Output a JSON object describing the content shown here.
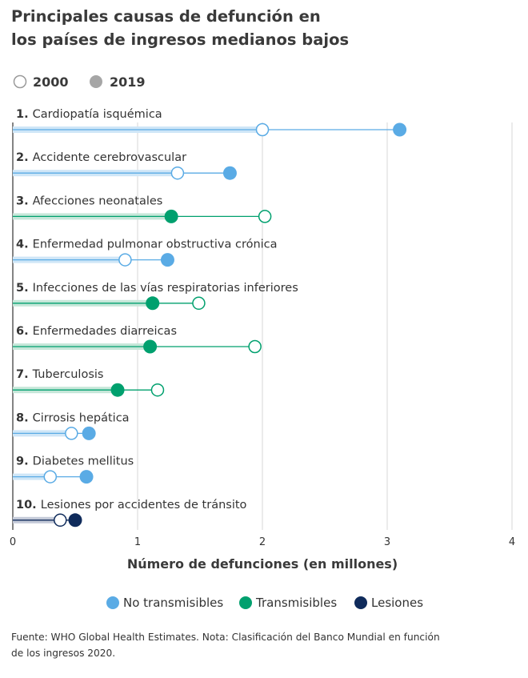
{
  "title": [
    "Principales causas de defunción en",
    "los países de ingresos medianos bajos"
  ],
  "year_legend": [
    {
      "label": "2000",
      "style": "hollow"
    },
    {
      "label": "2019",
      "style": "filled"
    }
  ],
  "xlabel": "Número de defunciones (en millones)",
  "type_legend": [
    {
      "key": "nt",
      "label": "No transmisibles",
      "color": "#5aabe5",
      "band": "#cfe6f7"
    },
    {
      "key": "t",
      "label": "Transmisibles",
      "color": "#00a06e",
      "band": "#c6e7d9"
    },
    {
      "key": "l",
      "label": "Lesiones",
      "color": "#0f2b5b",
      "band": "#c4cad8"
    }
  ],
  "source": [
    "Fuente: WHO Global Health Estimates. Nota: Clasificación del Banco Mundial en función",
    "de los ingresos 2020."
  ],
  "chart_data": {
    "type": "dumbbell",
    "xlim": [
      0,
      4
    ],
    "xticks": [
      "0",
      "1",
      "2",
      "3",
      "4"
    ],
    "grid": true,
    "series_names": [
      "2000",
      "2019"
    ],
    "categories": [
      {
        "rank": "1.",
        "name": "Cardiopatía isquémica",
        "type": "nt",
        "v2000": 2.0,
        "v2019": 3.1
      },
      {
        "rank": "2.",
        "name": "Accidente cerebrovascular",
        "type": "nt",
        "v2000": 1.32,
        "v2019": 1.74
      },
      {
        "rank": "3.",
        "name": "Afecciones neonatales",
        "type": "t",
        "v2000": 2.02,
        "v2019": 1.27
      },
      {
        "rank": "4.",
        "name": "Enfermedad pulmonar obstructiva crónica",
        "type": "nt",
        "v2000": 0.9,
        "v2019": 1.24
      },
      {
        "rank": "5.",
        "name": "Infecciones de las vías respiratorias inferiores",
        "type": "t",
        "v2000": 1.49,
        "v2019": 1.12
      },
      {
        "rank": "6.",
        "name": "Enfermedades diarreicas",
        "type": "t",
        "v2000": 1.94,
        "v2019": 1.1
      },
      {
        "rank": "7.",
        "name": "Tuberculosis",
        "type": "t",
        "v2000": 1.16,
        "v2019": 0.84
      },
      {
        "rank": "8.",
        "name": "Cirrosis hepática",
        "type": "nt",
        "v2000": 0.47,
        "v2019": 0.61
      },
      {
        "rank": "9.",
        "name": "Diabetes mellitus",
        "type": "nt",
        "v2000": 0.3,
        "v2019": 0.59
      },
      {
        "rank": "10.",
        "name": "Lesiones por accidentes de tránsito",
        "type": "l",
        "v2000": 0.38,
        "v2019": 0.5
      }
    ]
  }
}
